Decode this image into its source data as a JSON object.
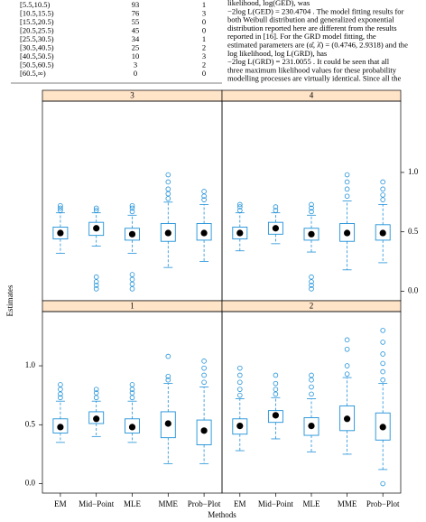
{
  "table": {
    "rows": [
      [
        "[5.5,10.5)",
        "93",
        "1"
      ],
      [
        "[10.5,15.5)",
        "76",
        "3"
      ],
      [
        "[15.5,20.5)",
        "55",
        "0"
      ],
      [
        "[20.5,25.5)",
        "45",
        "0"
      ],
      [
        "[25.5,30.5)",
        "34",
        "1"
      ],
      [
        "[30.5,40.5)",
        "25",
        "2"
      ],
      [
        "[40.5,50.5)",
        "10",
        "3"
      ],
      [
        "[50.5,60.5)",
        "3",
        "2"
      ],
      [
        "[60.5,∞)",
        "0",
        "0"
      ]
    ]
  },
  "text": {
    "lines": [
      "likelihood, log(GED), was",
      "−2log L(GED) = 230.4704 . The model fitting results for",
      "both Weibull distribution and generalized exponential",
      "distribution reported here are different from the results",
      "reported in [16]. For the GRD model fitting, the",
      "estimated parameters are (α̂, λ̂) = (0.4746, 2.9318) and the",
      "log likelihood, log L(GRD), has",
      "−2log L(GRD) = 231.0055 . It could be seen that all",
      "three maximum likelihood values for these probability",
      "modelling processes are virtually identical. Since all the"
    ]
  },
  "chart_data": {
    "type": "boxplot",
    "x_label": "Methods",
    "y_label": "Estimates",
    "color": "#1e90d8",
    "strip_color": "#ffe4c8",
    "categories": [
      "EM",
      "Mid−Point",
      "MLE",
      "MME",
      "Prob−Plot"
    ],
    "rows": [
      {
        "ylim": [
          -0.08,
          1.6
        ],
        "tick_side": "right",
        "yticks": [
          {
            "value": 0,
            "label": "0.0"
          },
          {
            "value": 0.5,
            "label": "0.5"
          },
          {
            "value": 1,
            "label": "1.0"
          }
        ],
        "panels": [
          {
            "title": "3",
            "boxes": [
              {
                "whisker_low": 0.32,
                "q1": 0.44,
                "median": 0.49,
                "q3": 0.54,
                "whisker_high": 0.66,
                "outliers": [
                  0.68,
                  0.7,
                  0.72
                ]
              },
              {
                "whisker_low": 0.38,
                "q1": 0.47,
                "median": 0.53,
                "q3": 0.58,
                "whisker_high": 0.66,
                "outliers": [
                  0.02,
                  0.05,
                  0.08,
                  0.12,
                  0.68,
                  0.7
                ]
              },
              {
                "whisker_low": 0.32,
                "q1": 0.43,
                "median": 0.48,
                "q3": 0.53,
                "whisker_high": 0.64,
                "outliers": [
                  0.02,
                  0.06,
                  0.1,
                  0.14,
                  0.67,
                  0.7,
                  0.72
                ]
              },
              {
                "whisker_low": 0.2,
                "q1": 0.42,
                "median": 0.49,
                "q3": 0.57,
                "whisker_high": 0.75,
                "outliers": [
                  0.78,
                  0.82,
                  0.86,
                  0.92,
                  0.98
                ]
              },
              {
                "whisker_low": 0.25,
                "q1": 0.43,
                "median": 0.49,
                "q3": 0.57,
                "whisker_high": 0.73,
                "outliers": [
                  0.77,
                  0.8,
                  0.84
                ]
              }
            ]
          },
          {
            "title": "4",
            "boxes": [
              {
                "whisker_low": 0.34,
                "q1": 0.44,
                "median": 0.49,
                "q3": 0.54,
                "whisker_high": 0.66,
                "outliers": [
                  0.68,
                  0.71,
                  0.73
                ]
              },
              {
                "whisker_low": 0.4,
                "q1": 0.48,
                "median": 0.53,
                "q3": 0.58,
                "whisker_high": 0.66,
                "outliers": [
                  0.68,
                  0.71
                ]
              },
              {
                "whisker_low": 0.33,
                "q1": 0.43,
                "median": 0.48,
                "q3": 0.53,
                "whisker_high": 0.64,
                "outliers": [
                  0.02,
                  0.05,
                  0.08,
                  0.12,
                  0.67,
                  0.7,
                  0.73
                ]
              },
              {
                "whisker_low": 0.18,
                "q1": 0.42,
                "median": 0.49,
                "q3": 0.57,
                "whisker_high": 0.76,
                "outliers": [
                  0.8,
                  0.86,
                  0.92,
                  0.98
                ]
              },
              {
                "whisker_low": 0.24,
                "q1": 0.43,
                "median": 0.49,
                "q3": 0.56,
                "whisker_high": 0.73,
                "outliers": [
                  0.77,
                  0.81,
                  0.86,
                  0.92
                ]
              }
            ]
          }
        ]
      },
      {
        "ylim": [
          -0.08,
          1.46
        ],
        "tick_side": "left",
        "yticks": [
          {
            "value": 0,
            "label": "0.0"
          },
          {
            "value": 0.5,
            "label": "0.5"
          },
          {
            "value": 1,
            "label": "1.0"
          }
        ],
        "panels": [
          {
            "title": "1",
            "boxes": [
              {
                "whisker_low": 0.35,
                "q1": 0.43,
                "median": 0.48,
                "q3": 0.55,
                "whisker_high": 0.7,
                "outliers": [
                  0.73,
                  0.76,
                  0.8,
                  0.84
                ]
              },
              {
                "whisker_low": 0.4,
                "q1": 0.51,
                "median": 0.55,
                "q3": 0.61,
                "whisker_high": 0.7,
                "outliers": [
                  0.73,
                  0.77,
                  0.8
                ]
              },
              {
                "whisker_low": 0.35,
                "q1": 0.43,
                "median": 0.48,
                "q3": 0.55,
                "whisker_high": 0.7,
                "outliers": [
                  0.73,
                  0.77,
                  0.8,
                  0.84
                ]
              },
              {
                "whisker_low": 0.17,
                "q1": 0.39,
                "median": 0.51,
                "q3": 0.61,
                "whisker_high": 0.85,
                "outliers": [
                  0.88,
                  0.91,
                  1.08
                ]
              },
              {
                "whisker_low": 0.17,
                "q1": 0.33,
                "median": 0.45,
                "q3": 0.54,
                "whisker_high": 0.82,
                "outliers": [
                  0.86,
                  0.92,
                  0.98,
                  1.04
                ]
              }
            ]
          },
          {
            "title": "2",
            "boxes": [
              {
                "whisker_low": 0.28,
                "q1": 0.42,
                "median": 0.49,
                "q3": 0.55,
                "whisker_high": 0.72,
                "outliers": [
                  0.75,
                  0.8,
                  0.86,
                  0.92,
                  0.98
                ]
              },
              {
                "whisker_low": 0.38,
                "q1": 0.52,
                "median": 0.58,
                "q3": 0.62,
                "whisker_high": 0.73,
                "outliers": [
                  0.76,
                  0.8,
                  0.85,
                  0.92
                ]
              },
              {
                "whisker_low": 0.27,
                "q1": 0.41,
                "median": 0.49,
                "q3": 0.56,
                "whisker_high": 0.72,
                "outliers": [
                  0.76,
                  0.82,
                  0.88,
                  0.92
                ]
              },
              {
                "whisker_low": 0.25,
                "q1": 0.45,
                "median": 0.55,
                "q3": 0.66,
                "whisker_high": 0.9,
                "outliers": [
                  0.93,
                  1.0,
                  1.14,
                  1.22
                ]
              },
              {
                "whisker_low": 0.12,
                "q1": 0.37,
                "median": 0.48,
                "q3": 0.6,
                "whisker_high": 0.85,
                "outliers": [
                  0.0,
                  0.88,
                  0.95,
                  1.02,
                  1.1,
                  1.2,
                  1.3
                ]
              }
            ]
          }
        ]
      }
    ]
  }
}
